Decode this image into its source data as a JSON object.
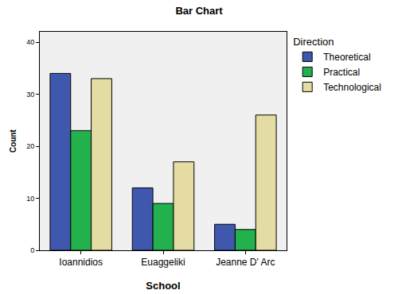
{
  "chart_data": {
    "type": "bar",
    "title": "Bar Chart",
    "x_label": "School",
    "y_label": "Count",
    "legend_title": "Direction",
    "categories": [
      "Ioannidios",
      "Euaggeliki",
      "Jeanne D' Arc"
    ],
    "series": [
      {
        "name": "Theoretical",
        "color": "#3f58ad",
        "values": [
          34,
          12,
          5
        ]
      },
      {
        "name": "Practical",
        "color": "#22b14c",
        "values": [
          23,
          9,
          4
        ]
      },
      {
        "name": "Technological",
        "color": "#e4dca3",
        "values": [
          33,
          17,
          26
        ]
      }
    ],
    "ylim": [
      0,
      42
    ],
    "yticks": [
      0,
      10,
      20,
      30,
      40
    ],
    "grid": false,
    "legend": "right"
  }
}
